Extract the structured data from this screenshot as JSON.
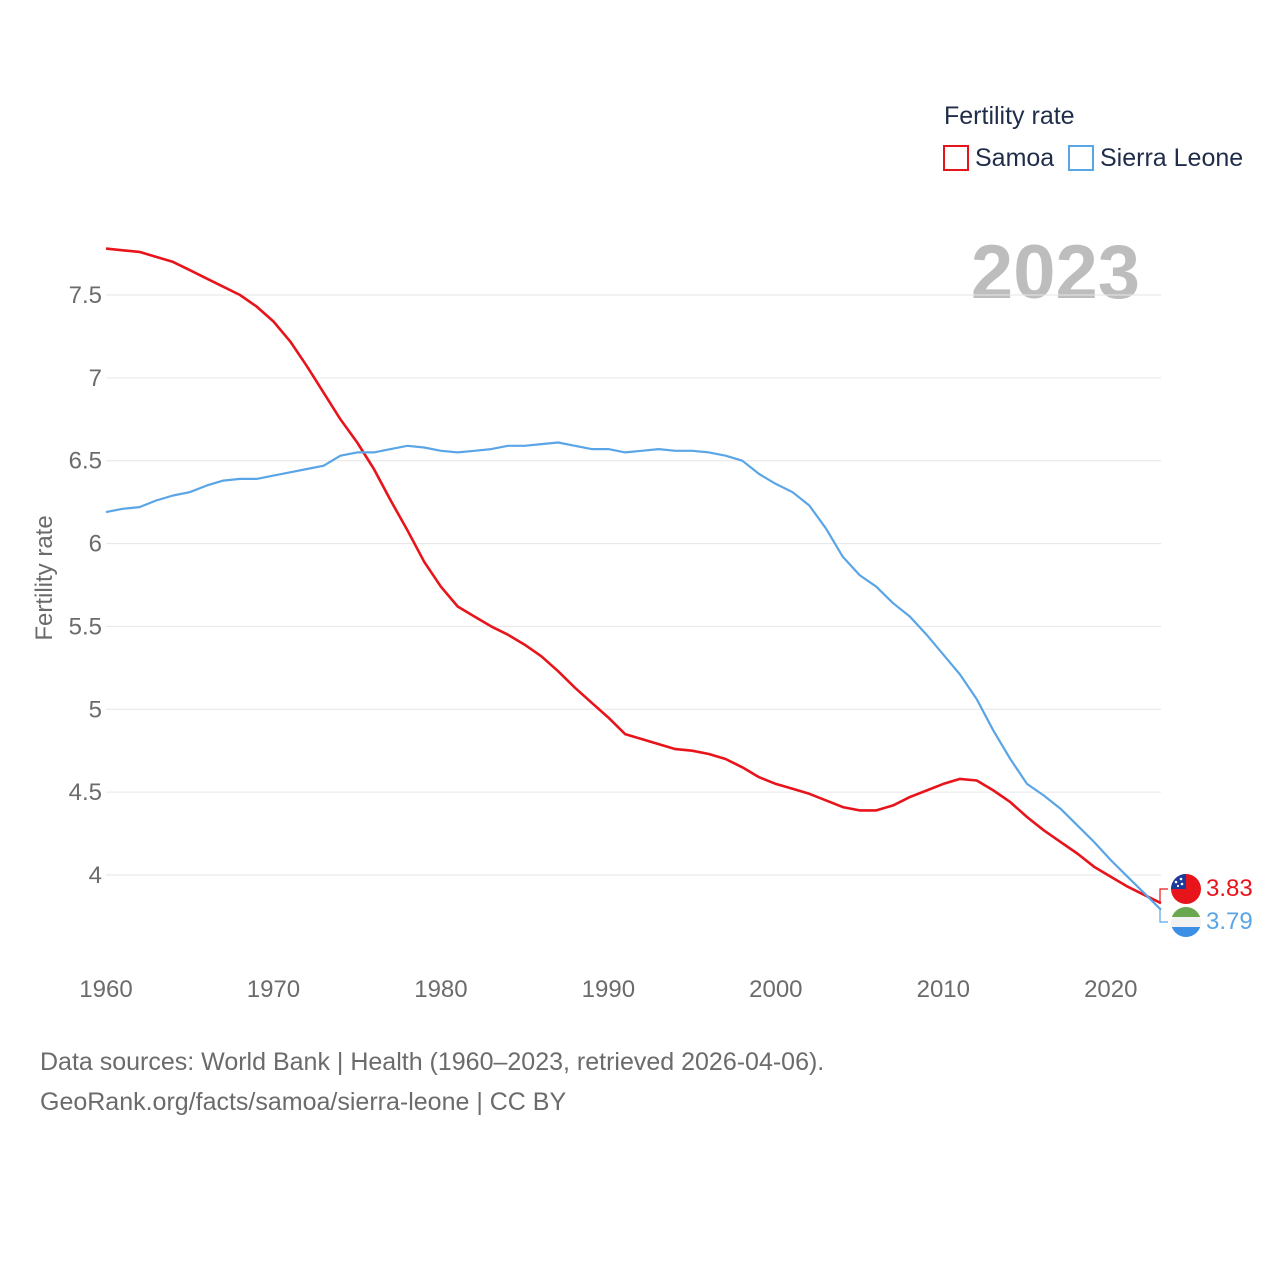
{
  "legend": {
    "title": "Fertility rate",
    "items": [
      {
        "label": "Samoa",
        "color": "#e8141b"
      },
      {
        "label": "Sierra Leone",
        "color": "#5aa5e6"
      }
    ]
  },
  "year_label": "2023",
  "source": {
    "line1": "Data sources: World Bank | Health (1960–2023, retrieved 2026-04-06).",
    "line2": "GeoRank.org/facts/samoa/sierra-leone | CC BY"
  },
  "chart_data": {
    "type": "line",
    "title": "Fertility rate",
    "xlabel": "",
    "ylabel": "Fertility rate",
    "xlim": [
      1960,
      2023
    ],
    "ylim": [
      3.6,
      7.8
    ],
    "x_ticks": [
      1960,
      1970,
      1980,
      1990,
      2000,
      2010,
      2020
    ],
    "y_ticks": [
      {
        "value": 4,
        "label": "4"
      },
      {
        "value": 4.5,
        "label": "4.5"
      },
      {
        "value": 5,
        "label": "5"
      },
      {
        "value": 5.5,
        "label": "5.5"
      },
      {
        "value": 6,
        "label": "6"
      },
      {
        "value": 6.5,
        "label": "6.5"
      },
      {
        "value": 7,
        "label": "7"
      },
      {
        "value": 7.5,
        "label": "7.5"
      }
    ],
    "grid": true,
    "legend_position": "top-right",
    "x": [
      1960,
      1961,
      1962,
      1963,
      1964,
      1965,
      1966,
      1967,
      1968,
      1969,
      1970,
      1971,
      1972,
      1973,
      1974,
      1975,
      1976,
      1977,
      1978,
      1979,
      1980,
      1981,
      1982,
      1983,
      1984,
      1985,
      1986,
      1987,
      1988,
      1989,
      1990,
      1991,
      1992,
      1993,
      1994,
      1995,
      1996,
      1997,
      1998,
      1999,
      2000,
      2001,
      2002,
      2003,
      2004,
      2005,
      2006,
      2007,
      2008,
      2009,
      2010,
      2011,
      2012,
      2013,
      2014,
      2015,
      2016,
      2017,
      2018,
      2019,
      2020,
      2021,
      2022,
      2023
    ],
    "series": [
      {
        "name": "Samoa",
        "color": "#e8141b",
        "end_label": "3.83",
        "values": [
          7.78,
          7.77,
          7.76,
          7.73,
          7.7,
          7.65,
          7.6,
          7.55,
          7.5,
          7.43,
          7.34,
          7.22,
          7.07,
          6.91,
          6.75,
          6.61,
          6.45,
          6.26,
          6.08,
          5.89,
          5.74,
          5.62,
          5.56,
          5.5,
          5.45,
          5.39,
          5.32,
          5.23,
          5.13,
          5.04,
          4.95,
          4.85,
          4.82,
          4.79,
          4.76,
          4.75,
          4.73,
          4.7,
          4.65,
          4.59,
          4.55,
          4.52,
          4.49,
          4.45,
          4.41,
          4.39,
          4.39,
          4.42,
          4.47,
          4.51,
          4.55,
          4.58,
          4.57,
          4.51,
          4.44,
          4.35,
          4.27,
          4.2,
          4.13,
          4.05,
          3.99,
          3.93,
          3.88,
          3.83
        ]
      },
      {
        "name": "Sierra Leone",
        "color": "#5aa5e6",
        "end_label": "3.79",
        "values": [
          6.19,
          6.21,
          6.22,
          6.26,
          6.29,
          6.31,
          6.35,
          6.38,
          6.39,
          6.39,
          6.41,
          6.43,
          6.45,
          6.47,
          6.53,
          6.55,
          6.55,
          6.57,
          6.59,
          6.58,
          6.56,
          6.55,
          6.56,
          6.57,
          6.59,
          6.59,
          6.6,
          6.61,
          6.59,
          6.57,
          6.57,
          6.55,
          6.56,
          6.57,
          6.56,
          6.56,
          6.55,
          6.53,
          6.5,
          6.42,
          6.36,
          6.31,
          6.23,
          6.09,
          5.92,
          5.81,
          5.74,
          5.64,
          5.56,
          5.45,
          5.33,
          5.21,
          5.06,
          4.87,
          4.7,
          4.55,
          4.48,
          4.4,
          4.3,
          4.2,
          4.09,
          3.99,
          3.89,
          3.79
        ]
      }
    ]
  }
}
